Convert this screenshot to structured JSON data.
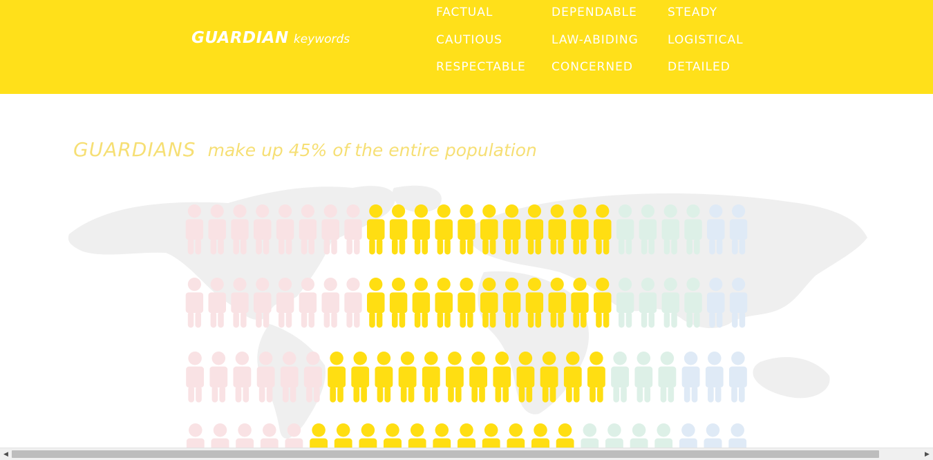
{
  "header": {
    "brand_main": "GUARDIAN",
    "brand_sub": "keywords",
    "keywords": [
      "FACTUAL",
      "DEPENDABLE",
      "STEADY",
      "CAUTIOUS",
      "LAW-ABIDING",
      "LOGISTICAL",
      "RESPECTABLE",
      "CONCERNED",
      "DETAILED"
    ]
  },
  "headline": {
    "main": "GUARDIANS",
    "sub": "make up 45% of the entire population"
  },
  "colors": {
    "header_bg": "#ffe01a",
    "guardian": "#ffde12",
    "other_pink": "#f9e2e4",
    "other_green": "#ddf0e7",
    "other_blue": "#dfeaf6",
    "headline": "#f6df74"
  },
  "population_rows": [
    {
      "pink": 8,
      "yellow": 11,
      "green": 4,
      "blue": 2
    },
    {
      "pink": 8,
      "yellow": 11,
      "green": 4,
      "blue": 2
    },
    {
      "pink": 6,
      "yellow": 12,
      "green": 3,
      "blue": 3
    },
    {
      "pink": 5,
      "yellow": 11,
      "green": 4,
      "blue": 3
    }
  ],
  "scrollbar": {
    "left_arrow_icon": "triangle-left-icon",
    "right_arrow_icon": "triangle-right-icon"
  }
}
